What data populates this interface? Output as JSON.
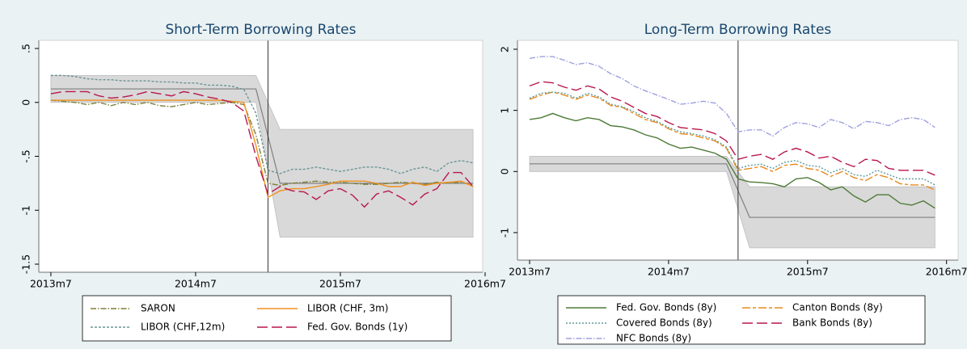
{
  "chart_data": [
    {
      "type": "line",
      "title": "Short-Term Borrowing Rates",
      "x": [
        642,
        643,
        644,
        645,
        646,
        647,
        648,
        649,
        650,
        651,
        652,
        653,
        654,
        655,
        656,
        657,
        658,
        659,
        660,
        661,
        662,
        663,
        664,
        665,
        666,
        667,
        668,
        669,
        670,
        671,
        672,
        673,
        674,
        675,
        676,
        677
      ],
      "xlim": [
        641,
        677.8
      ],
      "ylim": [
        -1.575,
        0.575
      ],
      "xticks": [
        {
          "value": 642,
          "label": "2013m7"
        },
        {
          "value": 654,
          "label": "2014m7"
        },
        {
          "value": 666,
          "label": "2015m7"
        },
        {
          "value": 678,
          "label": "2016m7"
        }
      ],
      "yticks": [
        {
          "value": 0.5,
          "label": ".5"
        },
        0,
        {
          "value": -0.5,
          "label": "-.5"
        },
        -1,
        -1.5
      ],
      "vline": 660,
      "band": {
        "x": [
          642,
          659,
          661,
          677
        ],
        "upper": [
          0.25,
          0.25,
          -0.25,
          -0.25
        ],
        "lower": [
          0,
          0,
          -1.25,
          -1.25
        ],
        "mid": [
          0.125,
          0.125,
          -0.75,
          -0.75
        ],
        "color": "#d9d9d9",
        "line_color": "#7f7f7f"
      },
      "series": [
        {
          "name": "SARON",
          "color": "#7f7f3a",
          "dash": "7 2 1.5 2",
          "values": [
            0.02,
            0.01,
            0.0,
            -0.02,
            0.0,
            -0.03,
            0.0,
            -0.02,
            0.0,
            -0.03,
            -0.04,
            -0.02,
            0.0,
            -0.02,
            -0.01,
            0.0,
            -0.02,
            -0.3,
            -0.75,
            -0.77,
            -0.75,
            -0.74,
            -0.73,
            -0.74,
            -0.74,
            -0.75,
            -0.76,
            -0.76,
            -0.75,
            -0.74,
            -0.75,
            -0.76,
            -0.74,
            -0.75,
            -0.74,
            -0.77
          ]
        },
        {
          "name": "LIBOR (CHF, 3m)",
          "color": "#f0901e",
          "dash": "none",
          "values": [
            0.02,
            0.02,
            0.02,
            0.02,
            0.02,
            0.02,
            0.02,
            0.02,
            0.02,
            0.02,
            0.02,
            0.02,
            0.02,
            0.02,
            0.02,
            0.01,
            0.0,
            -0.4,
            -0.88,
            -0.82,
            -0.8,
            -0.8,
            -0.78,
            -0.76,
            -0.73,
            -0.73,
            -0.73,
            -0.75,
            -0.78,
            -0.78,
            -0.74,
            -0.77,
            -0.75,
            -0.74,
            -0.73,
            -0.78
          ]
        },
        {
          "name": "LIBOR (CHF,12m)",
          "color": "#6b9494",
          "dash": "3 2",
          "values": [
            0.25,
            0.25,
            0.24,
            0.22,
            0.21,
            0.21,
            0.2,
            0.2,
            0.2,
            0.19,
            0.19,
            0.18,
            0.18,
            0.16,
            0.16,
            0.15,
            0.12,
            -0.1,
            -0.63,
            -0.66,
            -0.62,
            -0.62,
            -0.6,
            -0.62,
            -0.64,
            -0.62,
            -0.6,
            -0.6,
            -0.62,
            -0.66,
            -0.62,
            -0.6,
            -0.64,
            -0.56,
            -0.54,
            -0.56
          ]
        },
        {
          "name": "Fed. Gov. Bonds (1y)",
          "color": "#b8174e",
          "dash": "13 5",
          "values": [
            0.08,
            0.1,
            0.1,
            0.1,
            0.06,
            0.04,
            0.05,
            0.07,
            0.1,
            0.08,
            0.06,
            0.1,
            0.08,
            0.05,
            0.03,
            0.0,
            -0.08,
            -0.5,
            -0.85,
            -0.78,
            -0.82,
            -0.83,
            -0.9,
            -0.82,
            -0.8,
            -0.86,
            -0.97,
            -0.85,
            -0.82,
            -0.88,
            -0.95,
            -0.85,
            -0.8,
            -0.65,
            -0.65,
            -0.78
          ]
        }
      ]
    },
    {
      "type": "line",
      "title": "Long-Term Borrowing Rates",
      "x": [
        642,
        643,
        644,
        645,
        646,
        647,
        648,
        649,
        650,
        651,
        652,
        653,
        654,
        655,
        656,
        657,
        658,
        659,
        660,
        661,
        662,
        663,
        664,
        665,
        666,
        667,
        668,
        669,
        670,
        671,
        672,
        673,
        674,
        675,
        676,
        677
      ],
      "xlim": [
        640.95,
        679
      ],
      "ylim": [
        -1.45,
        2.145
      ],
      "xticks": [
        {
          "value": 642,
          "label": "2013m7"
        },
        {
          "value": 654,
          "label": "2014m7"
        },
        {
          "value": 666,
          "label": "2015m7"
        },
        {
          "value": 678,
          "label": "2016m7"
        }
      ],
      "yticks": [
        2,
        1,
        0,
        -1
      ],
      "vline": 660,
      "band": {
        "x": [
          642,
          659,
          661,
          677
        ],
        "upper": [
          0.25,
          0.25,
          -0.25,
          -0.25
        ],
        "lower": [
          0,
          0,
          -1.25,
          -1.25
        ],
        "mid": [
          0.125,
          0.125,
          -0.75,
          -0.75
        ],
        "color": "#d9d9d9",
        "line_color": "#7f7f7f"
      },
      "series": [
        {
          "name": "Fed. Gov. Bonds (8y)",
          "color": "#4d7a36",
          "dash": "none",
          "values": [
            0.85,
            0.88,
            0.95,
            0.88,
            0.83,
            0.88,
            0.85,
            0.75,
            0.73,
            0.68,
            0.6,
            0.55,
            0.45,
            0.38,
            0.4,
            0.35,
            0.3,
            0.2,
            -0.12,
            -0.17,
            -0.18,
            -0.2,
            -0.25,
            -0.12,
            -0.1,
            -0.18,
            -0.3,
            -0.25,
            -0.4,
            -0.5,
            -0.38,
            -0.38,
            -0.52,
            -0.55,
            -0.48,
            -0.6
          ]
        },
        {
          "name": "Canton Bonds (8y)",
          "color": "#e8891d",
          "dash": "10 3 4 3",
          "values": [
            1.18,
            1.25,
            1.3,
            1.25,
            1.18,
            1.25,
            1.2,
            1.08,
            1.05,
            0.95,
            0.85,
            0.8,
            0.7,
            0.62,
            0.6,
            0.55,
            0.5,
            0.38,
            0.02,
            0.05,
            0.08,
            0.0,
            0.1,
            0.12,
            0.05,
            0.02,
            -0.08,
            0.0,
            -0.1,
            -0.15,
            -0.05,
            -0.1,
            -0.2,
            -0.22,
            -0.22,
            -0.3
          ]
        },
        {
          "name": "Covered Bonds (8y)",
          "color": "#5f9a9a",
          "dash": "2 2",
          "values": [
            1.2,
            1.28,
            1.3,
            1.28,
            1.2,
            1.28,
            1.22,
            1.1,
            1.06,
            0.98,
            0.88,
            0.82,
            0.72,
            0.65,
            0.62,
            0.58,
            0.52,
            0.4,
            0.05,
            0.1,
            0.12,
            0.05,
            0.15,
            0.18,
            0.1,
            0.08,
            -0.02,
            0.05,
            -0.05,
            -0.08,
            0.02,
            -0.05,
            -0.12,
            -0.12,
            -0.12,
            -0.22
          ]
        },
        {
          "name": "Bank Bonds (8y)",
          "color": "#b8174e",
          "dash": "13 5",
          "values": [
            1.4,
            1.47,
            1.45,
            1.38,
            1.33,
            1.4,
            1.35,
            1.22,
            1.15,
            1.05,
            0.95,
            0.9,
            0.8,
            0.72,
            0.7,
            0.68,
            0.62,
            0.5,
            0.2,
            0.25,
            0.28,
            0.2,
            0.32,
            0.38,
            0.32,
            0.22,
            0.25,
            0.15,
            0.08,
            0.2,
            0.18,
            0.05,
            0.02,
            0.02,
            0.02,
            -0.06
          ]
        },
        {
          "name": "NFC Bonds (8y)",
          "color": "#a0a0e0",
          "dash": "7 2 1.5 2",
          "values": [
            1.85,
            1.88,
            1.88,
            1.82,
            1.75,
            1.78,
            1.72,
            1.6,
            1.52,
            1.4,
            1.32,
            1.25,
            1.18,
            1.1,
            1.12,
            1.15,
            1.12,
            0.95,
            0.65,
            0.68,
            0.68,
            0.58,
            0.72,
            0.8,
            0.78,
            0.72,
            0.85,
            0.8,
            0.7,
            0.82,
            0.8,
            0.75,
            0.85,
            0.88,
            0.85,
            0.72
          ]
        }
      ]
    }
  ]
}
